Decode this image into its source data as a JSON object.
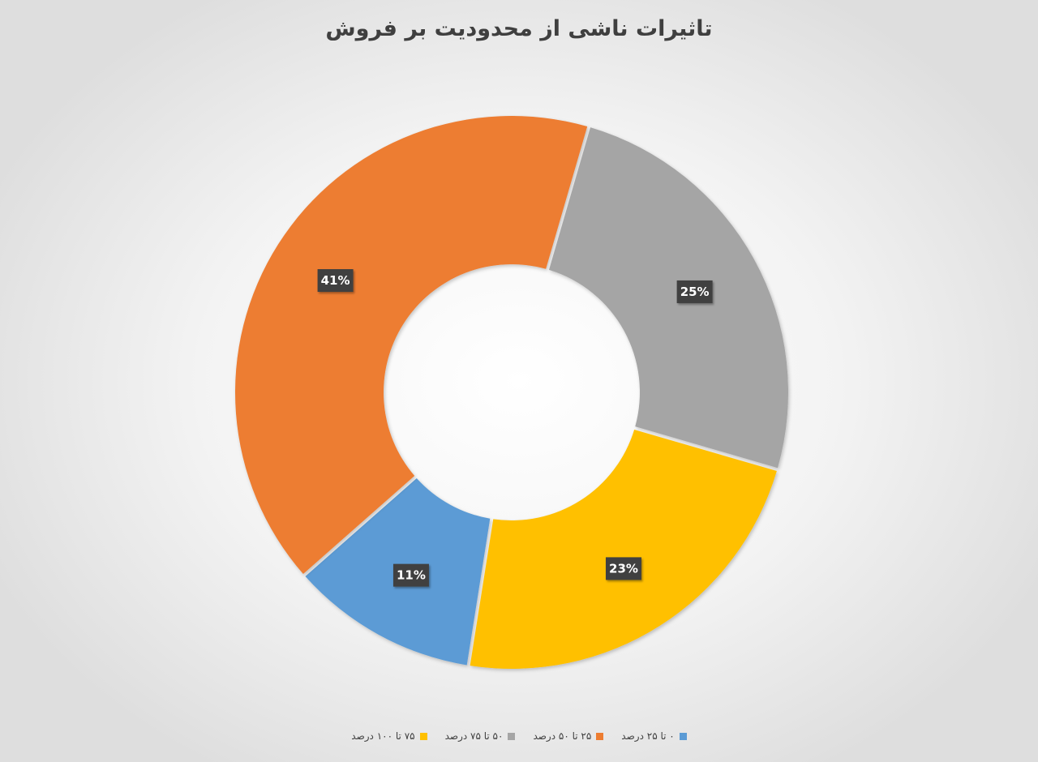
{
  "chart_data": {
    "type": "donut",
    "title": "تاثیرات ناشی از محدودیت بر فروش",
    "slices": [
      {
        "label": "۰ تا ۲۵ درصد",
        "value": 11,
        "display": "11%",
        "color": "#5b9bd5"
      },
      {
        "label": "۲۵ تا ۵۰ درصد",
        "value": 41,
        "display": "41%",
        "color": "#ed7d31"
      },
      {
        "label": "۵۰ تا ۷۵ درصد",
        "value": 25,
        "display": "25%",
        "color": "#a5a5a5"
      },
      {
        "label": "۷۵ تا ۱۰۰ درصد",
        "value": 23,
        "display": "23%",
        "color": "#ffc000"
      }
    ],
    "legend_position": "bottom"
  },
  "legend_order": [
    3,
    2,
    1,
    0
  ]
}
